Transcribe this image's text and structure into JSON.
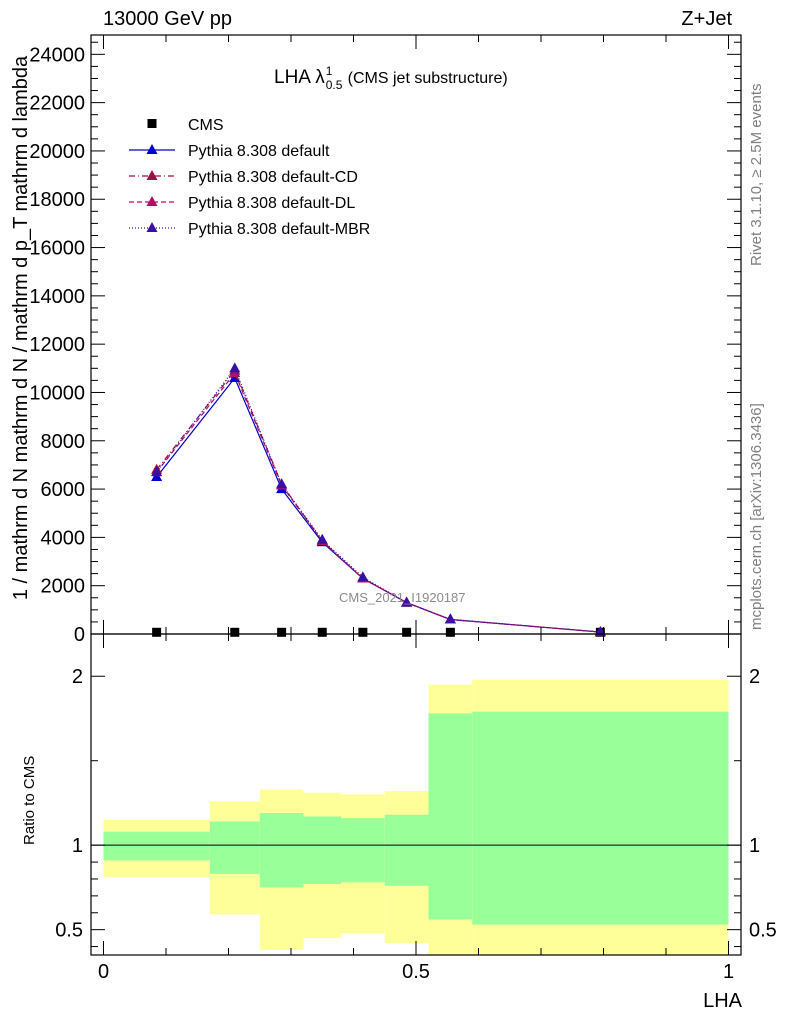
{
  "header": {
    "left_label": "13000 GeV pp",
    "right_label": "Z+Jet",
    "side_top": "Rivet 3.1.10, ≥ 2.5M events",
    "side_bottom": "mcplots.cern.ch [arXiv:1306.3436]"
  },
  "plot_title": {
    "prefix": "LHA λ",
    "superscript": "1",
    "subscript": "0.5",
    "suffix": "(CMS jet substructure)"
  },
  "watermark": "CMS_2021_I1920187",
  "colors": {
    "cms": "#000000",
    "default": "#0000cc",
    "default_cd": "#a01040",
    "default_dl": "#b0106a",
    "default_mbr": "#3a10a0",
    "band_outer": "#ffff99",
    "band_inner": "#99ff99"
  },
  "chart_data": [
    {
      "type": "line",
      "title": "",
      "xlabel": "",
      "ylabel": "1 / mathrm d N  mathrm d N / mathrm d p_T mathrm d lambda",
      "xlim": [
        -0.02,
        1.02
      ],
      "ylim": [
        0,
        24800
      ],
      "y_ticks": [
        0,
        2000,
        4000,
        6000,
        8000,
        10000,
        12000,
        14000,
        16000,
        18000,
        20000,
        22000,
        24000
      ],
      "y_tick_labels": [
        "0",
        "2000",
        "4000",
        "6000",
        "8000",
        "10000",
        "12000",
        "14000",
        "16000",
        "18000",
        "20000",
        "22000",
        "24000"
      ],
      "legend_position": "top-left",
      "series": [
        {
          "name": "CMS",
          "marker": "square",
          "style": "none",
          "x": [
            0.085,
            0.21,
            0.285,
            0.35,
            0.415,
            0.485,
            0.555,
            0.795
          ],
          "y": [
            50,
            50,
            50,
            50,
            50,
            50,
            50,
            50
          ]
        },
        {
          "name": "Pythia 8.308 default",
          "marker": "triangle",
          "style": "solid",
          "x": [
            0.085,
            0.21,
            0.285,
            0.35,
            0.415,
            0.485,
            0.555,
            0.795
          ],
          "y": [
            6500,
            10600,
            6000,
            3800,
            2300,
            1300,
            600,
            80
          ]
        },
        {
          "name": "Pythia 8.308 default-CD",
          "marker": "triangle",
          "style": "dashdot",
          "x": [
            0.085,
            0.21,
            0.285,
            0.35,
            0.415,
            0.485,
            0.555,
            0.795
          ],
          "y": [
            6800,
            10900,
            6200,
            3850,
            2300,
            1300,
            600,
            80
          ]
        },
        {
          "name": "Pythia 8.308 default-DL",
          "marker": "triangle",
          "style": "dashed",
          "x": [
            0.085,
            0.21,
            0.285,
            0.35,
            0.415,
            0.485,
            0.555,
            0.795
          ],
          "y": [
            6700,
            10800,
            6150,
            3850,
            2300,
            1300,
            600,
            80
          ]
        },
        {
          "name": "Pythia 8.308 default-MBR",
          "marker": "triangle",
          "style": "dotted",
          "x": [
            0.085,
            0.21,
            0.285,
            0.35,
            0.415,
            0.485,
            0.555,
            0.795
          ],
          "y": [
            6700,
            11000,
            6200,
            3900,
            2350,
            1300,
            610,
            80
          ]
        }
      ]
    },
    {
      "type": "area",
      "title": "",
      "xlabel": "LHA",
      "ylabel": "Ratio to CMS",
      "xlim": [
        -0.02,
        1.02
      ],
      "ylim": [
        0.35,
        2.25
      ],
      "x_ticks": [
        0,
        0.5,
        1
      ],
      "x_tick_labels": [
        "0",
        "0.5",
        "1"
      ],
      "y_ticks": [
        0.5,
        1,
        2
      ],
      "y_tick_labels": [
        "0.5",
        "1",
        "2"
      ],
      "reference_line": 1,
      "bins": [
        {
          "x_low": 0.0,
          "x_high": 0.17,
          "inner": [
            0.91,
            1.08
          ],
          "outer": [
            0.81,
            1.15
          ]
        },
        {
          "x_low": 0.17,
          "x_high": 0.25,
          "inner": [
            0.83,
            1.14
          ],
          "outer": [
            0.59,
            1.26
          ]
        },
        {
          "x_low": 0.25,
          "x_high": 0.32,
          "inner": [
            0.75,
            1.19
          ],
          "outer": [
            0.38,
            1.33
          ]
        },
        {
          "x_low": 0.32,
          "x_high": 0.38,
          "inner": [
            0.77,
            1.17
          ],
          "outer": [
            0.45,
            1.31
          ]
        },
        {
          "x_low": 0.38,
          "x_high": 0.45,
          "inner": [
            0.78,
            1.16
          ],
          "outer": [
            0.48,
            1.3
          ]
        },
        {
          "x_low": 0.45,
          "x_high": 0.52,
          "inner": [
            0.76,
            1.18
          ],
          "outer": [
            0.42,
            1.32
          ]
        },
        {
          "x_low": 0.52,
          "x_high": 0.59,
          "inner": [
            0.56,
            1.78
          ],
          "outer": [
            0.35,
            1.95
          ]
        },
        {
          "x_low": 0.59,
          "x_high": 1.0,
          "inner": [
            0.53,
            1.79
          ],
          "outer": [
            0.35,
            1.98
          ]
        }
      ]
    }
  ]
}
